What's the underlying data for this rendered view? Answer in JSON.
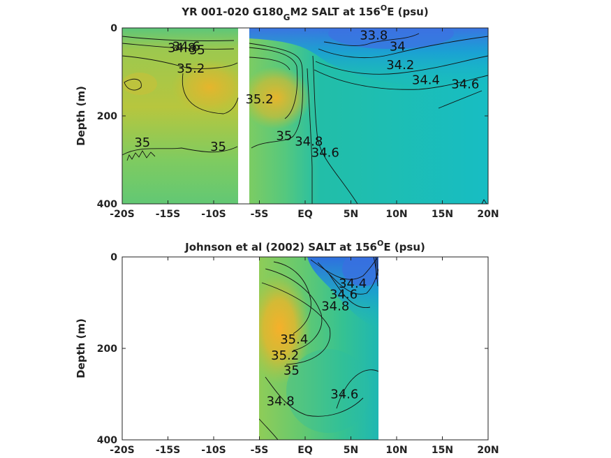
{
  "chart_data": [
    {
      "type": "contour",
      "title_parts": [
        "YR 001-020 G180",
        "G",
        "M2 SALT at 156",
        "O",
        "E (psu)"
      ],
      "xlabel": "",
      "ylabel": "Depth (m)",
      "xlim": [
        -20,
        20
      ],
      "ylim": [
        0,
        400
      ],
      "y_reversed": true,
      "x_ticks": [
        -20,
        -15,
        -10,
        -5,
        0,
        5,
        10,
        15,
        20
      ],
      "x_tick_labels": [
        "-20S",
        "-15S",
        "-10S",
        "-5S",
        "EQ",
        "5N",
        "10N",
        "15N",
        "20N"
      ],
      "y_ticks": [
        0,
        200,
        400
      ],
      "y_tick_labels": [
        "0",
        "200",
        "400"
      ],
      "data_extent_x": [
        [
          -20,
          -7.5
        ],
        [
          -6.2,
          20
        ]
      ],
      "data_extent_y": [
        0,
        385
      ],
      "colormap": [
        "#3e6fe0",
        "#1ea8d6",
        "#19c0b6",
        "#3ec98c",
        "#88cc5c",
        "#c0c235",
        "#edb32a"
      ],
      "contour_labels": [
        {
          "text": "34.6",
          "x": -13,
          "y": 42
        },
        {
          "text": "34.8",
          "x": -13.5,
          "y": 45
        },
        {
          "text": "35",
          "x": -11.8,
          "y": 50
        },
        {
          "text": "35.2",
          "x": -12.5,
          "y": 92
        },
        {
          "text": "35",
          "x": -17.8,
          "y": 260
        },
        {
          "text": "35",
          "x": -9.5,
          "y": 270
        },
        {
          "text": "35.2",
          "x": -5,
          "y": 162
        },
        {
          "text": "35",
          "x": -2.3,
          "y": 245
        },
        {
          "text": "34.8",
          "x": 0.4,
          "y": 258
        },
        {
          "text": "34.6",
          "x": 2.2,
          "y": 283
        },
        {
          "text": "33.8",
          "x": 7.5,
          "y": 17
        },
        {
          "text": "34",
          "x": 10.1,
          "y": 42
        },
        {
          "text": "34.2",
          "x": 10.4,
          "y": 84
        },
        {
          "text": "34.4",
          "x": 13.2,
          "y": 118
        },
        {
          "text": "34.6",
          "x": 17.5,
          "y": 128
        }
      ]
    },
    {
      "type": "contour",
      "title_parts": [
        "Johnson et al (2002) SALT at 156",
        "O",
        "E (psu)"
      ],
      "xlabel": "",
      "ylabel": "Depth (m)",
      "xlim": [
        -20,
        20
      ],
      "ylim": [
        0,
        400
      ],
      "y_reversed": true,
      "x_ticks": [
        -20,
        -15,
        -10,
        -5,
        0,
        5,
        10,
        15,
        20
      ],
      "x_tick_labels": [
        "-20S",
        "-15S",
        "-10S",
        "-5S",
        "EQ",
        "5N",
        "10N",
        "15N",
        "20N"
      ],
      "y_ticks": [
        0,
        200,
        400
      ],
      "y_tick_labels": [
        "0",
        "200",
        "400"
      ],
      "data_extent_x": [
        [
          -5,
          8
        ]
      ],
      "data_extent_y": [
        0,
        400
      ],
      "colormap": [
        "#3e6fe0",
        "#1ea8d6",
        "#19c0b6",
        "#3ec98c",
        "#88cc5c",
        "#c0c235",
        "#edb32a"
      ],
      "contour_labels": [
        {
          "text": "34.4",
          "x": 5.2,
          "y": 58
        },
        {
          "text": "34.6",
          "x": 4.2,
          "y": 82
        },
        {
          "text": "34.8",
          "x": 3.3,
          "y": 108
        },
        {
          "text": "35.4",
          "x": -1.2,
          "y": 180
        },
        {
          "text": "35.2",
          "x": -2.2,
          "y": 215
        },
        {
          "text": "35",
          "x": -1.5,
          "y": 248
        },
        {
          "text": "34.6",
          "x": 4.3,
          "y": 300
        },
        {
          "text": "34.8",
          "x": -2.7,
          "y": 315
        }
      ]
    }
  ]
}
